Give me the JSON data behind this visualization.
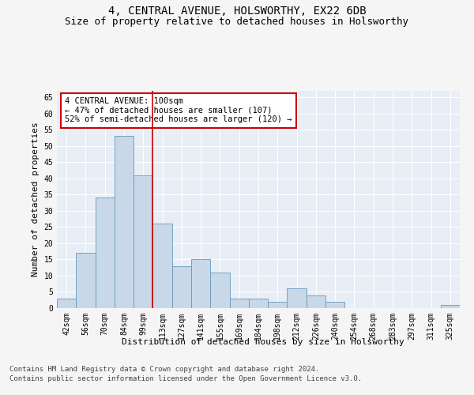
{
  "title": "4, CENTRAL AVENUE, HOLSWORTHY, EX22 6DB",
  "subtitle": "Size of property relative to detached houses in Holsworthy",
  "xlabel": "Distribution of detached houses by size in Holsworthy",
  "ylabel": "Number of detached properties",
  "categories": [
    "42sqm",
    "56sqm",
    "70sqm",
    "84sqm",
    "99sqm",
    "113sqm",
    "127sqm",
    "141sqm",
    "155sqm",
    "169sqm",
    "184sqm",
    "198sqm",
    "212sqm",
    "226sqm",
    "240sqm",
    "254sqm",
    "268sqm",
    "283sqm",
    "297sqm",
    "311sqm",
    "325sqm"
  ],
  "values": [
    3,
    17,
    34,
    53,
    41,
    26,
    13,
    15,
    11,
    3,
    3,
    2,
    6,
    4,
    2,
    0,
    0,
    0,
    0,
    0,
    1
  ],
  "bar_color": "#c8d8e8",
  "bar_edge_color": "#6699bb",
  "bar_width": 1.0,
  "ylim": [
    0,
    67
  ],
  "yticks": [
    0,
    5,
    10,
    15,
    20,
    25,
    30,
    35,
    40,
    45,
    50,
    55,
    60,
    65
  ],
  "vline_x": 4.5,
  "vline_color": "#cc0000",
  "annotation_text": "4 CENTRAL AVENUE: 100sqm\n← 47% of detached houses are smaller (107)\n52% of semi-detached houses are larger (120) →",
  "annotation_box_color": "#ffffff",
  "annotation_box_edgecolor": "#cc0000",
  "footer_line1": "Contains HM Land Registry data © Crown copyright and database right 2024.",
  "footer_line2": "Contains public sector information licensed under the Open Government Licence v3.0.",
  "background_color": "#e8eef6",
  "fig_background_color": "#f5f5f5",
  "grid_color": "#ffffff",
  "title_fontsize": 10,
  "subtitle_fontsize": 9,
  "axis_label_fontsize": 8,
  "tick_fontsize": 7,
  "annotation_fontsize": 7.5,
  "footer_fontsize": 6.5
}
